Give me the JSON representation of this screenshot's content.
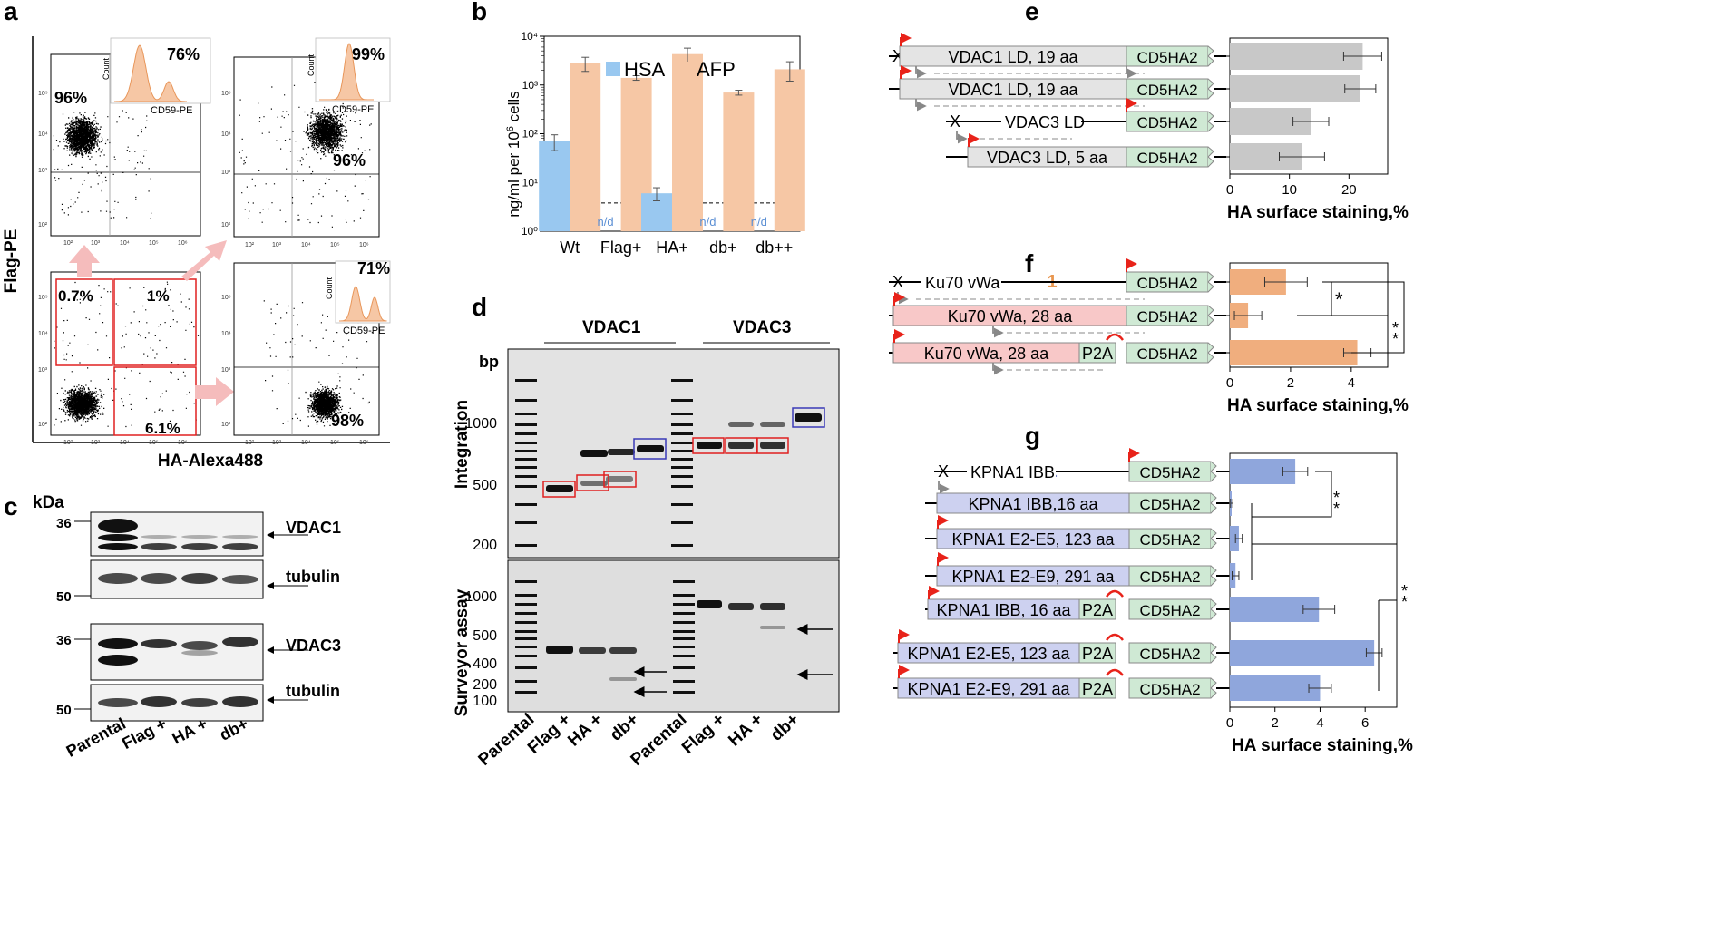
{
  "panel_letters": [
    "a",
    "b",
    "c",
    "d",
    "e",
    "f",
    "g"
  ],
  "panel_a": {
    "ylabel": "Flag-PE",
    "xlabel": "HA-Alexa488",
    "main_top_pct": "96%",
    "gates": [
      "0.7%",
      "1%",
      "6.1%"
    ],
    "sub1_pct": "96%",
    "sub2_pct": "98%",
    "inset1": {
      "pct": "76%",
      "xlabel": "CD59-PE",
      "ylabel": "Count"
    },
    "inset2": {
      "pct": "99%",
      "xlabel": "CD59-PE",
      "ylabel": "Count"
    },
    "inset3": {
      "pct": "71%",
      "xlabel": "CD59-PE",
      "ylabel": "Count"
    },
    "ticks": [
      "10²",
      "10³",
      "10⁴",
      "10⁵",
      "10⁶"
    ]
  },
  "panel_b": {
    "ylabel_main": "ng/ml per 10",
    "ylabel_sup": "6",
    "ylabel_end": " cells",
    "yticks": [
      "10⁰",
      "10¹",
      "10²",
      "10³",
      "10⁴"
    ],
    "nd": "n/d",
    "colors": {
      "HSA": "#99c8f0",
      "AFP": "#f6c7a5"
    }
  },
  "chart_data": {
    "type": "bar",
    "title": "",
    "categories": [
      "Wt",
      "Flag+",
      "HA+",
      "db+",
      "db++"
    ],
    "series": [
      {
        "name": "HSA",
        "values": [
          70,
          null,
          6,
          null,
          null
        ]
      },
      {
        "name": "AFP",
        "values": [
          2800,
          1400,
          4300,
          700,
          2100
        ]
      }
    ],
    "ylabel": "ng/ml per 10^6 cells",
    "yscale": "log",
    "ylim": [
      1,
      10000
    ],
    "detection_limit": 3.8
  },
  "panel_c": {
    "unit": "kDa",
    "markers": [
      "36",
      "50",
      "36",
      "50"
    ],
    "labels": [
      "VDAC1",
      "tubulin",
      "VDAC3",
      "tubulin"
    ],
    "lanes": [
      "Parental",
      "Flag +",
      "HA +",
      "db+"
    ]
  },
  "panel_d": {
    "groups": [
      "VDAC1",
      "VDAC3"
    ],
    "bp": "bp",
    "int_ticks": [
      "1000",
      "500",
      "200"
    ],
    "sur_ticks": [
      "1000",
      "500",
      "400",
      "200",
      "100"
    ],
    "row_labels": [
      "Integration",
      "Surveyor  assay"
    ],
    "lanes": [
      "Parental",
      "Flag +",
      "HA +",
      "db+",
      "Parental",
      "Flag +",
      "HA +",
      "db+"
    ]
  },
  "panel_e": {
    "rows": [
      {
        "num": "1",
        "label": "VDAC1 LD, 19 aa",
        "tag": "CD5HA2",
        "value": 22.3,
        "err": 3.2
      },
      {
        "num": "2",
        "label": "VDAC1 LD, 19 aa",
        "tag": "CD5HA2",
        "value": 21.9,
        "err": 2.6
      },
      {
        "num": "3",
        "label": "VDAC3 LD",
        "tag": "CD5HA2",
        "value": 13.6,
        "err": 3.0
      },
      {
        "num": "4",
        "label": "VDAC3 LD, 5 aa",
        "tag": "CD5HA2",
        "value": 12.1,
        "err": 3.8
      }
    ],
    "xticks": [
      "0",
      "10",
      "20"
    ],
    "xlabel": "HA surface staining,%"
  },
  "panel_f": {
    "rows": [
      {
        "num": "1",
        "label": "Ku70 vWa",
        "tag": "CD5HA2",
        "value": 1.85,
        "err": 0.7
      },
      {
        "num": "2",
        "label": "Ku70 vWa, 28 aa",
        "tag": "CD5HA2",
        "value": 0.6,
        "err": 0.45
      },
      {
        "num": "3",
        "label": "Ku70 vWa, 28 aa",
        "p2a": "P2A",
        "tag": "CD5HA2",
        "value": 4.2,
        "err": 0.45
      }
    ],
    "sig": [
      "*",
      "*",
      "*"
    ],
    "xticks": [
      "0",
      "2",
      "4"
    ],
    "xlabel": "HA surface staining,%"
  },
  "panel_g": {
    "rows": [
      {
        "num": "1",
        "label": "KPNA1 IBB",
        "tag": "CD5HA2",
        "value": 2.9,
        "err": 0.55
      },
      {
        "num": "2",
        "label": "KPNA1 IBB,16 aa",
        "tag": "CD5HA2",
        "value": 0.08,
        "err": 0.05
      },
      {
        "num": "3",
        "label": "KPNA1 E2-E5, 123 aa",
        "tag": "CD5HA2",
        "value": 0.4,
        "err": 0.15
      },
      {
        "num": "4",
        "label": "KPNA1 E2-E9, 291 aa",
        "tag": "CD5HA2",
        "value": 0.25,
        "err": 0.15
      },
      {
        "num": "5",
        "label": "KPNA1 IBB, 16 aa",
        "p2a": "P2A",
        "tag": "CD5HA2",
        "value": 3.95,
        "err": 0.7
      },
      {
        "num": "6",
        "label": "KPNA1 E2-E5, 123 aa",
        "p2a": "P2A",
        "tag": "CD5HA2",
        "value": 6.4,
        "err": 0.35
      },
      {
        "num": "7",
        "label": "KPNA1 E2-E9, 291 aa",
        "p2a": "P2A",
        "tag": "CD5HA2",
        "value": 4.0,
        "err": 0.5
      }
    ],
    "sig": [
      "*",
      "*",
      "*",
      "*"
    ],
    "xticks": [
      "0",
      "2",
      "4",
      "6"
    ],
    "xlabel": "HA surface staining,%"
  }
}
